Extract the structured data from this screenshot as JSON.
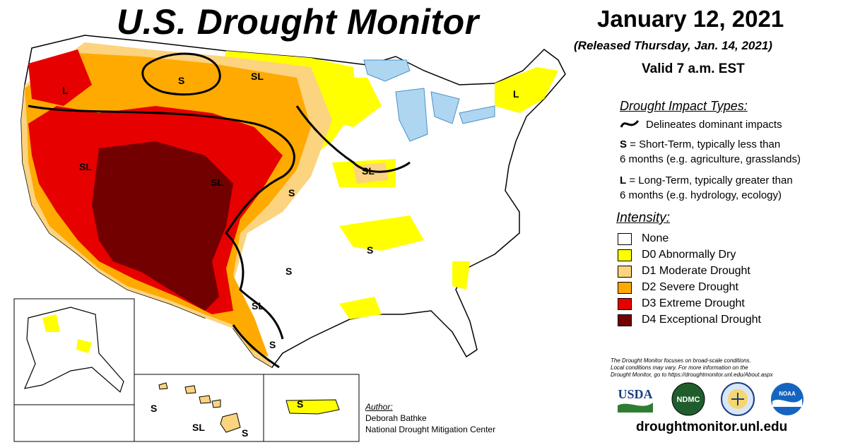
{
  "header": {
    "title": "U.S. Drought Monitor",
    "date": "January 12, 2021",
    "released": "(Released Thursday, Jan. 14, 2021)",
    "valid": "Valid 7 a.m. EST"
  },
  "impact_types": {
    "heading": "Drought Impact Types:",
    "delineates": "Delineates dominant impacts",
    "short_term_key": "S",
    "short_term_line1": " = Short-Term, typically less than",
    "short_term_line2": "6 months (e.g. agriculture, grasslands)",
    "long_term_key": "L",
    "long_term_line1": " = Long-Term, typically greater than",
    "long_term_line2": "6 months (e.g. hydrology, ecology)"
  },
  "intensity": {
    "heading": "Intensity:",
    "items": [
      {
        "label": "None",
        "color": "#ffffff"
      },
      {
        "label": "D0 Abnormally Dry",
        "color": "#ffff00"
      },
      {
        "label": "D1 Moderate Drought",
        "color": "#fcd37f"
      },
      {
        "label": "D2 Severe Drought",
        "color": "#ffaa00"
      },
      {
        "label": "D3 Extreme Drought",
        "color": "#e60000"
      },
      {
        "label": "D4 Exceptional Drought",
        "color": "#730000"
      }
    ]
  },
  "disclaimer": {
    "line1": "The Drought Monitor focuses on broad-scale conditions.",
    "line2": "Local conditions may vary. For more information on the",
    "line3": "Drought Monitor, go to https://droughtmonitor.unl.edu/About.aspx"
  },
  "logos": {
    "usda": "USDA",
    "ndmc": "NDMC",
    "noaa": "NOAA"
  },
  "website": "droughtmonitor.unl.edu",
  "author": {
    "label": "Author:",
    "name": "Deborah Bathke",
    "org": "National Drought Mitigation Center"
  },
  "map_labels": {
    "s": "S",
    "l": "L",
    "sl": "SL"
  }
}
